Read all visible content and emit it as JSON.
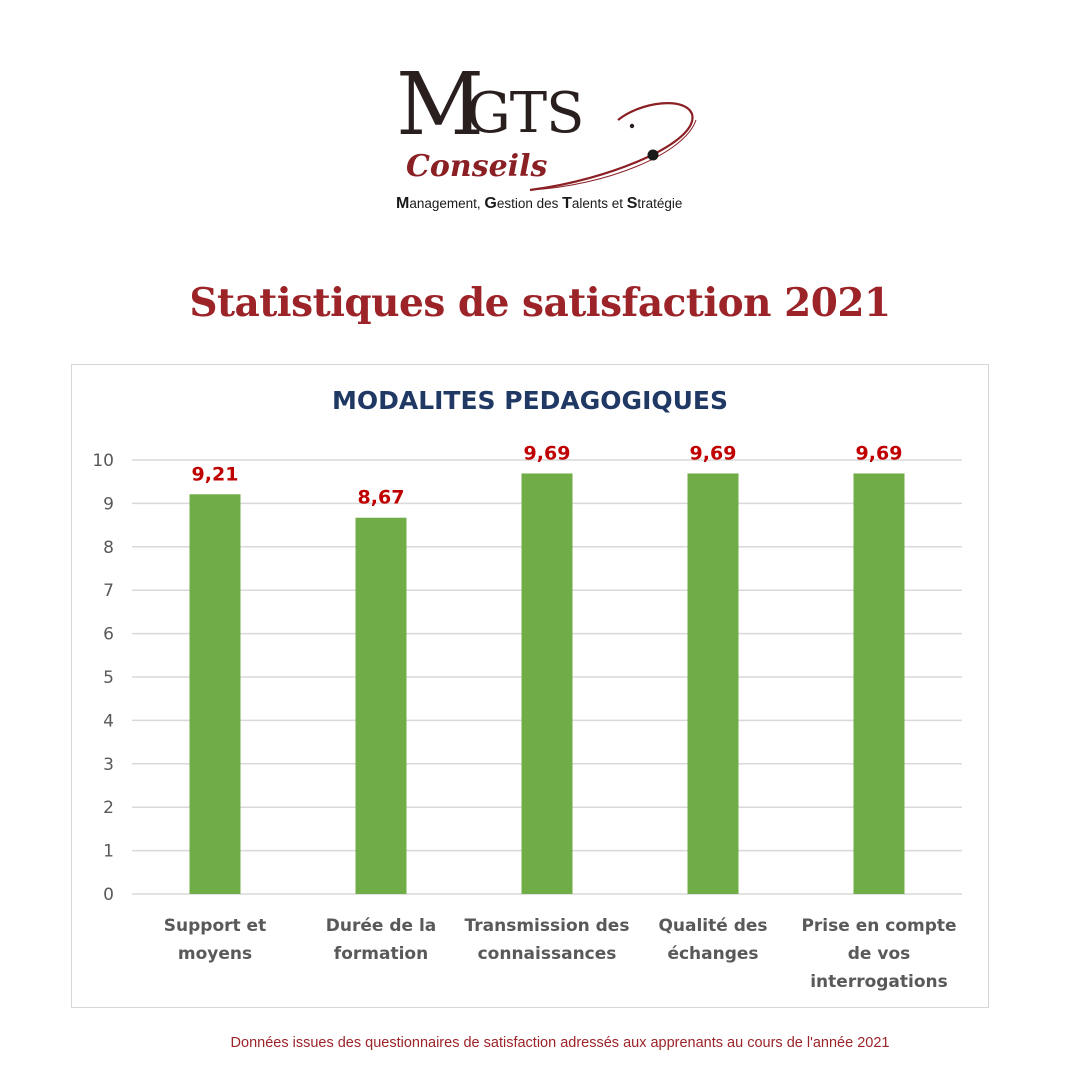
{
  "logo": {
    "m": "M",
    "gts": "GTS",
    "conseils": "Conseils",
    "tagline": [
      {
        "initial": "M",
        "rest": "anagement, "
      },
      {
        "initial": "G",
        "rest": "estion des "
      },
      {
        "initial": "T",
        "rest": "alents et "
      },
      {
        "initial": "S",
        "rest": "tratégie"
      }
    ],
    "colors": {
      "dark": "#2a1f1f",
      "accent": "#8a1f24"
    }
  },
  "page_title": "Statistiques de satisfaction 2021",
  "footnote": "Données issues des questionnaires de satisfaction adressés aux apprenants au cours de l'année 2021",
  "chart_data": {
    "type": "bar",
    "title": "MODALITES PEDAGOGIQUES",
    "xlabel": "",
    "ylabel": "",
    "categories": [
      [
        "Support et",
        "moyens"
      ],
      [
        "Durée de la",
        "formation"
      ],
      [
        "Transmission des",
        "connaissances"
      ],
      [
        "Qualité des",
        "échanges"
      ],
      [
        "Prise en compte",
        "de vos",
        "interrogations"
      ]
    ],
    "values": [
      9.21,
      8.67,
      9.69,
      9.69,
      9.69
    ],
    "data_labels": [
      "9,21",
      "8,67",
      "9,69",
      "9,69",
      "9,69"
    ],
    "ylim": [
      0,
      10
    ],
    "yticks": [
      0,
      1,
      2,
      3,
      4,
      5,
      6,
      7,
      8,
      9,
      10
    ],
    "grid": true,
    "legend": "none",
    "colors": {
      "bar": "#70ad47",
      "label": "#c00000",
      "title": "#1f3864",
      "grid": "#d9d9d9"
    }
  }
}
